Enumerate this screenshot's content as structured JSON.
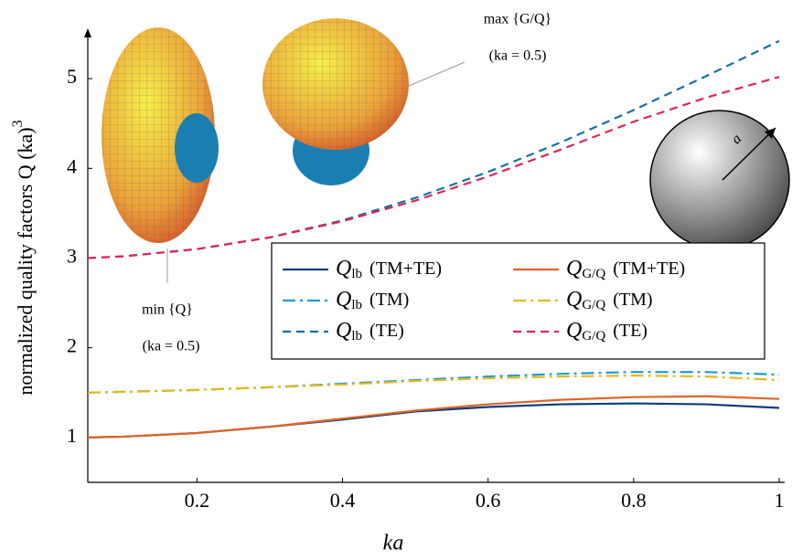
{
  "chart_data": {
    "type": "line",
    "xlabel": "ka",
    "ylabel": "normalized quality factors Q (ka)",
    "ylabel_superscript": "3",
    "x": [
      0.05,
      0.1,
      0.2,
      0.3,
      0.4,
      0.5,
      0.6,
      0.7,
      0.8,
      0.9,
      1.0
    ],
    "xlim": [
      0.05,
      1
    ],
    "ylim": [
      0.5,
      5.5
    ],
    "xticks": [
      0.2,
      0.4,
      0.6,
      0.8,
      1
    ],
    "yticks": [
      1,
      2,
      3,
      4,
      5
    ],
    "legend": "center-right",
    "series": [
      {
        "symbol": "Q",
        "subscript": "lb",
        "name": "(TM+TE)",
        "color": "#0b3d7a",
        "dash": "solid",
        "values": [
          1.0,
          1.01,
          1.05,
          1.12,
          1.2,
          1.29,
          1.34,
          1.37,
          1.38,
          1.37,
          1.33
        ]
      },
      {
        "symbol": "Q",
        "subscript": "G/Q",
        "name": "(TM+TE)",
        "color": "#e0642a",
        "dash": "solid",
        "values": [
          1.0,
          1.01,
          1.05,
          1.12,
          1.21,
          1.3,
          1.37,
          1.42,
          1.45,
          1.46,
          1.43
        ]
      },
      {
        "symbol": "Q",
        "subscript": "lb",
        "name": "(TM)",
        "color": "#1f9bd4",
        "dash": "dashdot",
        "values": [
          1.5,
          1.51,
          1.53,
          1.56,
          1.6,
          1.64,
          1.68,
          1.71,
          1.73,
          1.73,
          1.7
        ]
      },
      {
        "symbol": "Q",
        "subscript": "G/Q",
        "name": "(TM)",
        "color": "#e8b81a",
        "dash": "dashdot",
        "values": [
          1.5,
          1.51,
          1.53,
          1.56,
          1.59,
          1.63,
          1.66,
          1.68,
          1.69,
          1.68,
          1.64
        ]
      },
      {
        "symbol": "Q",
        "subscript": "lb",
        "name": "(TE)",
        "color": "#1a6fa0",
        "dash": "dash",
        "values": [
          3.0,
          3.02,
          3.1,
          3.23,
          3.42,
          3.67,
          3.96,
          4.29,
          4.65,
          5.03,
          5.42
        ]
      },
      {
        "symbol": "Q",
        "subscript": "G/Q",
        "name": "(TE)",
        "color": "#e0245a",
        "dash": "dash",
        "values": [
          3.0,
          3.02,
          3.1,
          3.23,
          3.41,
          3.64,
          3.91,
          4.21,
          4.52,
          4.79,
          5.02
        ]
      }
    ],
    "annotations": [
      "max {G/Q}",
      "(ka = 0.5)",
      "min {Q}",
      "(ka = 0.5)",
      "a"
    ]
  }
}
